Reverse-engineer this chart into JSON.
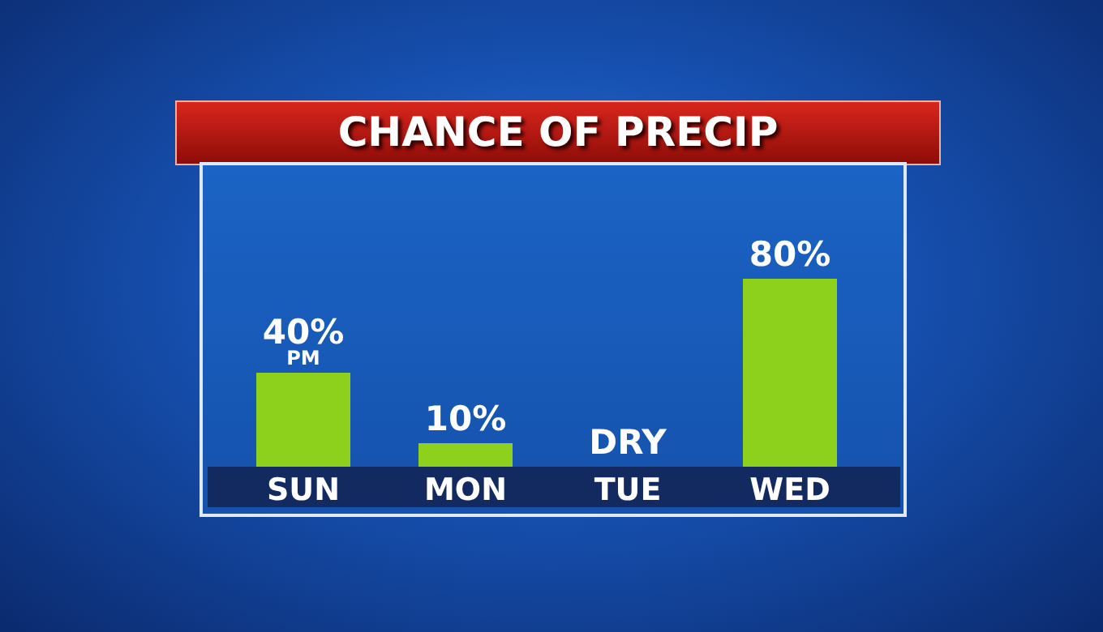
{
  "chart_data": {
    "type": "bar",
    "title": "CHANCE OF PRECIP",
    "categories": [
      "SUN",
      "MON",
      "TUE",
      "WED"
    ],
    "values": [
      40,
      10,
      0,
      80
    ],
    "value_labels": [
      "40%",
      "10%",
      "DRY",
      "80%"
    ],
    "color": "#8ed11c",
    "annotations": [
      {
        "text": "PM",
        "x": "SUN",
        "y": 40
      }
    ]
  }
}
